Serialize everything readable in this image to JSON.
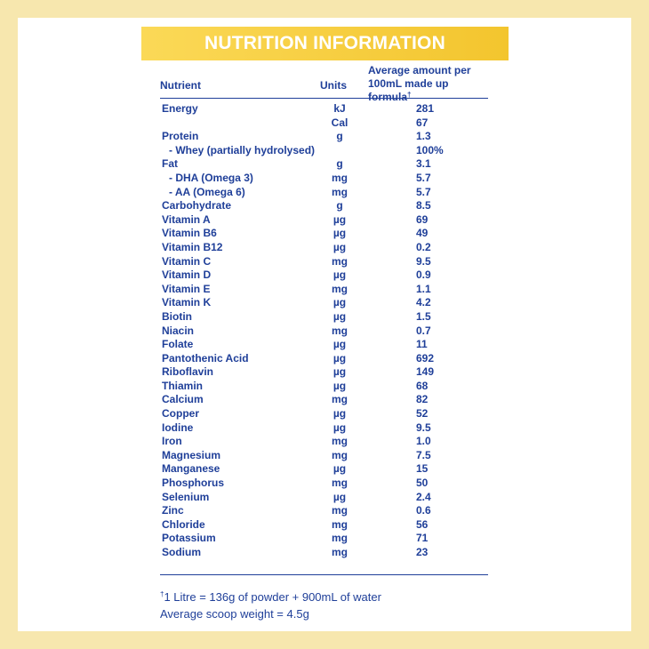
{
  "banner": {
    "title": "NUTRITION INFORMATION"
  },
  "table": {
    "headers": {
      "nutrient": "Nutrient",
      "units": "Units",
      "amount_line1": "Average amount per",
      "amount_line2": "100mL made up formula",
      "amount_dagger": "†"
    },
    "rows": [
      {
        "name": "Energy",
        "unit": "kJ",
        "value": "281",
        "sub": false
      },
      {
        "name": "",
        "unit": "Cal",
        "value": "67",
        "sub": false
      },
      {
        "name": "Protein",
        "unit": "g",
        "value": "1.3",
        "sub": false
      },
      {
        "name": "- Whey (partially hydrolysed)",
        "unit": "",
        "value": "100%",
        "sub": true
      },
      {
        "name": "Fat",
        "unit": "g",
        "value": "3.1",
        "sub": false
      },
      {
        "name": "- DHA (Omega 3)",
        "unit": "mg",
        "value": "5.7",
        "sub": true
      },
      {
        "name": "- AA (Omega 6)",
        "unit": "mg",
        "value": "5.7",
        "sub": true
      },
      {
        "name": "Carbohydrate",
        "unit": "g",
        "value": "8.5",
        "sub": false
      },
      {
        "name": "Vitamin A",
        "unit": "µg",
        "value": "69",
        "sub": false
      },
      {
        "name": "Vitamin B6",
        "unit": "µg",
        "value": "49",
        "sub": false
      },
      {
        "name": "Vitamin B12",
        "unit": "µg",
        "value": "0.2",
        "sub": false
      },
      {
        "name": "Vitamin C",
        "unit": "mg",
        "value": "9.5",
        "sub": false
      },
      {
        "name": "Vitamin D",
        "unit": "µg",
        "value": "0.9",
        "sub": false
      },
      {
        "name": "Vitamin E",
        "unit": "mg",
        "value": "1.1",
        "sub": false
      },
      {
        "name": "Vitamin K",
        "unit": "µg",
        "value": "4.2",
        "sub": false
      },
      {
        "name": "Biotin",
        "unit": "µg",
        "value": "1.5",
        "sub": false
      },
      {
        "name": "Niacin",
        "unit": "mg",
        "value": "0.7",
        "sub": false
      },
      {
        "name": "Folate",
        "unit": "µg",
        "value": "11",
        "sub": false
      },
      {
        "name": "Pantothenic Acid",
        "unit": "µg",
        "value": "692",
        "sub": false
      },
      {
        "name": "Riboflavin",
        "unit": "µg",
        "value": "149",
        "sub": false
      },
      {
        "name": "Thiamin",
        "unit": "µg",
        "value": "68",
        "sub": false
      },
      {
        "name": "Calcium",
        "unit": "mg",
        "value": "82",
        "sub": false
      },
      {
        "name": "Copper",
        "unit": "µg",
        "value": "52",
        "sub": false
      },
      {
        "name": "Iodine",
        "unit": "µg",
        "value": "9.5",
        "sub": false
      },
      {
        "name": "Iron",
        "unit": "mg",
        "value": "1.0",
        "sub": false
      },
      {
        "name": "Magnesium",
        "unit": "mg",
        "value": "7.5",
        "sub": false
      },
      {
        "name": "Manganese",
        "unit": "µg",
        "value": "15",
        "sub": false
      },
      {
        "name": "Phosphorus",
        "unit": "mg",
        "value": "50",
        "sub": false
      },
      {
        "name": "Selenium",
        "unit": "µg",
        "value": "2.4",
        "sub": false
      },
      {
        "name": "Zinc",
        "unit": "mg",
        "value": "0.6",
        "sub": false
      },
      {
        "name": "Chloride",
        "unit": "mg",
        "value": "56",
        "sub": false
      },
      {
        "name": "Potassium",
        "unit": "mg",
        "value": "71",
        "sub": false
      },
      {
        "name": "Sodium",
        "unit": "mg",
        "value": "23",
        "sub": false
      }
    ]
  },
  "footnote": {
    "dagger": "†",
    "line1": "1 Litre = 136g of powder + 900mL of water",
    "line2": "Average scoop weight = 4.5g"
  },
  "colors": {
    "text": "#1f3f99",
    "banner": "#f3c52e",
    "frame": "#f7e7ae",
    "panel": "#ffffff"
  }
}
